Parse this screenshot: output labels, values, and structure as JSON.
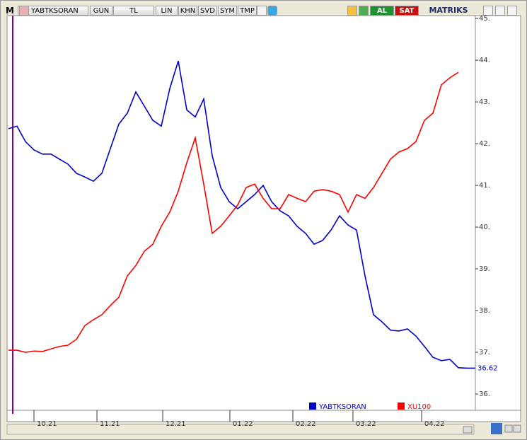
{
  "toolbar": {
    "logo": "M",
    "symbol": "YABTKSORAN",
    "buttons": [
      "GUN",
      "TL",
      "LIN",
      "KHN",
      "SVD",
      "SYM",
      "TMP"
    ],
    "buy": "AL",
    "sell": "SAT",
    "brand": "MATRIKS"
  },
  "chart_data": {
    "type": "line",
    "x": [
      0,
      1,
      2,
      3,
      4,
      5,
      6,
      7,
      8,
      9,
      10,
      11,
      12,
      13,
      14,
      15,
      16,
      17,
      18,
      19,
      20,
      21,
      22,
      23,
      24,
      25,
      26,
      27,
      28,
      29,
      30,
      31,
      32,
      33,
      34,
      35,
      36,
      37,
      38,
      39,
      40,
      41,
      42,
      43,
      44,
      45,
      46,
      47,
      48,
      49,
      50,
      51,
      52,
      53,
      54,
      55
    ],
    "xlim": [
      0,
      55
    ],
    "xticks": [
      {
        "value": 3,
        "label": "10.21"
      },
      {
        "value": 10.42,
        "label": "11.21"
      },
      {
        "value": 18.17,
        "label": "12.21"
      },
      {
        "value": 26.08,
        "label": "01.22"
      },
      {
        "value": 33.5,
        "label": "02.22"
      },
      {
        "value": 40.58,
        "label": "03.22"
      },
      {
        "value": 48.67,
        "label": "04.22"
      }
    ],
    "ylim": [
      35.61,
      45.07
    ],
    "yticks": [
      {
        "value": 36,
        "label": "36."
      },
      {
        "value": 37,
        "label": "37."
      },
      {
        "value": 38,
        "label": "38."
      },
      {
        "value": 39,
        "label": "39."
      },
      {
        "value": 40,
        "label": "40."
      },
      {
        "value": 41,
        "label": "41."
      },
      {
        "value": 42,
        "label": "42."
      },
      {
        "value": 43,
        "label": "43."
      },
      {
        "value": 44,
        "label": "44."
      },
      {
        "value": 45,
        "label": "45."
      }
    ],
    "series": [
      {
        "name": "YABTKSORAN",
        "color": "#0000cc",
        "values": [
          42.36,
          42.42,
          42.05,
          41.85,
          41.75,
          41.75,
          41.63,
          41.51,
          41.29,
          41.2,
          41.1,
          41.29,
          41.88,
          42.47,
          42.73,
          43.24,
          42.9,
          42.56,
          42.42,
          43.32,
          43.98,
          42.81,
          42.64,
          43.07,
          41.71,
          40.95,
          40.61,
          40.44,
          40.61,
          40.78,
          41.0,
          40.61,
          40.39,
          40.27,
          40.02,
          39.85,
          39.59,
          39.68,
          39.93,
          40.27,
          40.05,
          39.93,
          38.83,
          37.9,
          37.73,
          37.53,
          37.51,
          37.56,
          37.39,
          37.14,
          36.88,
          36.8,
          36.83,
          36.63,
          36.62,
          36.62
        ],
        "value_labels": [
          null,
          null,
          null,
          null,
          null,
          null,
          null,
          null,
          null,
          null,
          null,
          null,
          null,
          null,
          null,
          null,
          null,
          null,
          null,
          null,
          null,
          null,
          null,
          null,
          null,
          null,
          null,
          null,
          null,
          null,
          null,
          null,
          null,
          null,
          null,
          null,
          null,
          null,
          null,
          null,
          null,
          null,
          null,
          null,
          null,
          null,
          null,
          null,
          null,
          null,
          null,
          null,
          null,
          null,
          null,
          "36.62"
        ]
      },
      {
        "name": "XU100",
        "color": "#ff0000",
        "values": [
          37.05,
          37.05,
          37.0,
          37.03,
          37.02,
          37.08,
          37.14,
          37.17,
          37.31,
          37.64,
          37.78,
          37.9,
          38.12,
          38.32,
          38.83,
          39.08,
          39.42,
          39.59,
          40.02,
          40.36,
          40.86,
          41.54,
          42.14,
          41.03,
          39.85,
          40.02,
          40.27,
          40.53,
          40.95,
          41.03,
          40.69,
          40.44,
          40.44,
          40.78,
          40.69,
          40.61,
          40.86,
          40.9,
          40.86,
          40.78,
          40.36,
          40.78,
          40.69,
          40.95,
          41.29,
          41.63,
          41.8,
          41.88,
          42.05,
          42.56,
          42.73,
          43.41,
          43.58,
          43.71,
          null,
          null
        ]
      }
    ]
  }
}
